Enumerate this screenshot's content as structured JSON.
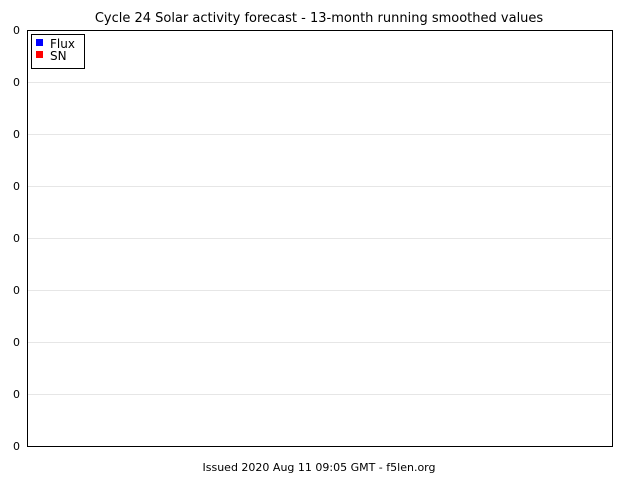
{
  "chart_data": {
    "type": "line",
    "title": "Cycle 24 Solar activity forecast - 13-month running smoothed values",
    "xlabel": "",
    "ylabel": "",
    "y_tick_labels": [
      "0",
      "0",
      "0",
      "0",
      "0",
      "0",
      "0",
      "0",
      "0"
    ],
    "x_tick_labels": [],
    "grid": true,
    "legend_position": "top-left",
    "series": [
      {
        "name": "Flux",
        "color": "#0000ff",
        "values": []
      },
      {
        "name": "SN",
        "color": "#ff0000",
        "values": []
      }
    ],
    "footer": "Issued 2020 Aug 11 09:05 GMT - f5len.org"
  },
  "colors": {
    "background": "#ffffff",
    "plot_border": "#000000",
    "gridline": "#e6e6e6",
    "text": "#000000",
    "footer_text": "#222222"
  }
}
